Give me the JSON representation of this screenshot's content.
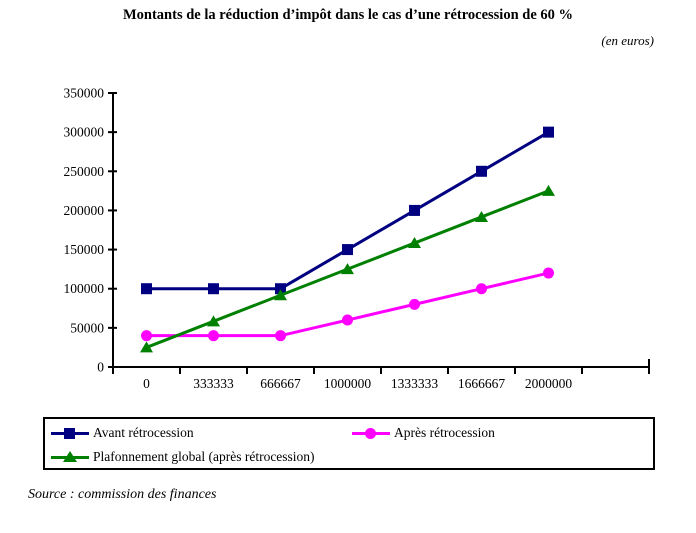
{
  "title": "Montants de la réduction d’impôt dans le cas d’une rétrocession de 60 %",
  "unit_note": "(en euros)",
  "source": "Source : commission des finances",
  "colors": {
    "avant": "#000080",
    "apres": "#FF00FF",
    "plafonnement": "#008000",
    "axis": "#000000",
    "background": "#FFFFFF"
  },
  "chart_data": {
    "type": "line",
    "title": "Montants de la réduction d’impôt dans le cas d’une rétrocession de 60 %",
    "subtitle": "(en euros)",
    "x": [
      0,
      333333,
      666667,
      1000000,
      1333333,
      1666667,
      2000000
    ],
    "x_tick_labels": [
      "0",
      "333333",
      "666667",
      "1000000",
      "1333333",
      "1666667",
      "2000000"
    ],
    "series": [
      {
        "name": "Avant rétrocession",
        "marker": "square",
        "color": "#000080",
        "values": [
          100000,
          100000,
          100000,
          150000,
          200000,
          250000,
          300000
        ]
      },
      {
        "name": "Après rétrocession",
        "marker": "circle",
        "color": "#FF00FF",
        "values": [
          40000,
          40000,
          40000,
          60000,
          80000,
          100000,
          120000
        ]
      },
      {
        "name": "Plafonnement global (après rétrocession)",
        "marker": "triangle",
        "color": "#008000",
        "values": [
          25000,
          58333,
          91667,
          125000,
          158333,
          191667,
          225000
        ]
      }
    ],
    "ylim": [
      0,
      350000
    ],
    "y_tick_step": 50000,
    "grid": false,
    "legend_position": "bottom-box",
    "source": "Source : commission des finances"
  }
}
